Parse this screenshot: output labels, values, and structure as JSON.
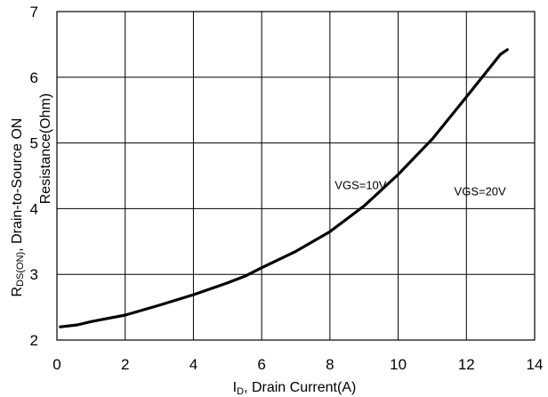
{
  "chart_data": {
    "type": "line",
    "xlim": [
      0,
      14
    ],
    "ylim": [
      2,
      7
    ],
    "x_ticks": [
      "0",
      "2",
      "4",
      "6",
      "8",
      "10",
      "12",
      "14"
    ],
    "y_ticks": [
      "2",
      "3",
      "4",
      "5",
      "6",
      "7"
    ],
    "grid": true,
    "xlabel": {
      "prefix": "I",
      "subscript": "D",
      "suffix": ", Drain Current(A)"
    },
    "ylabel": {
      "line1_prefix": "R",
      "line1_subscript": "DS(ON)",
      "line1_suffix": ", Drain-to-Source ON",
      "line2": "Resistance(Ohm)"
    },
    "annotations": [
      {
        "text": "VGS=10V",
        "x": 8.9,
        "y": 4.3
      },
      {
        "text": "VGS=20V",
        "x": 12.4,
        "y": 4.2
      }
    ],
    "series": [
      {
        "x": [
          0.1,
          0.6,
          1.0,
          2.0,
          3.0,
          4.0,
          5.0,
          5.5,
          6.0,
          7.0,
          8.0,
          9.0,
          10.0,
          11.0,
          12.0,
          13.0,
          13.2
        ],
        "y": [
          2.2,
          2.23,
          2.28,
          2.38,
          2.53,
          2.69,
          2.87,
          2.97,
          3.1,
          3.35,
          3.65,
          4.04,
          4.52,
          5.06,
          5.7,
          6.35,
          6.42
        ]
      }
    ]
  }
}
